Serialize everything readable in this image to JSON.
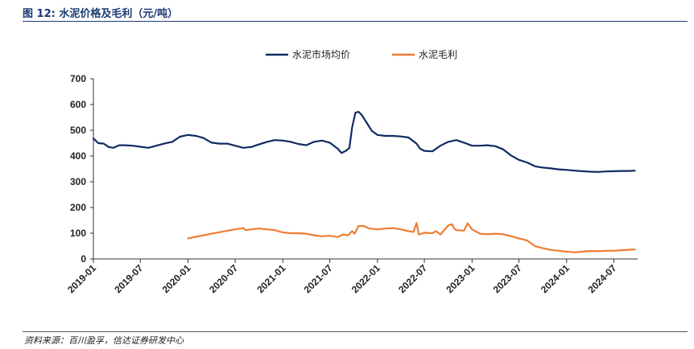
{
  "header": {
    "title": "图 12:  水泥价格及毛利（元/吨）"
  },
  "footer": {
    "source": "资料来源：百川盈孚，信达证券研发中心"
  },
  "colors": {
    "price": "#102a63",
    "margin": "#ed7d31",
    "axis": "#333333",
    "rule": "#1a3a73"
  },
  "chart_data": {
    "type": "line",
    "title": "",
    "xlabel": "",
    "ylabel": "",
    "ylim": [
      0,
      700
    ],
    "yticks": [
      0,
      100,
      200,
      300,
      400,
      500,
      600,
      700
    ],
    "xlim": [
      "2019-01",
      "2024-10"
    ],
    "xticks": [
      "2019-01",
      "2019-07",
      "2020-01",
      "2020-07",
      "2021-01",
      "2021-07",
      "2022-01",
      "2022-07",
      "2023-01",
      "2023-07",
      "2024-01",
      "2024-07"
    ],
    "grid": false,
    "legend": "top-center",
    "series": [
      {
        "name": "水泥市场均价",
        "color": "#102a63",
        "points": [
          [
            "2019-01-01",
            468
          ],
          [
            "2019-01-20",
            450
          ],
          [
            "2019-02-10",
            448
          ],
          [
            "2019-03-01",
            435
          ],
          [
            "2019-03-20",
            432
          ],
          [
            "2019-04-10",
            442
          ],
          [
            "2019-05-01",
            442
          ],
          [
            "2019-06-01",
            440
          ],
          [
            "2019-07-01",
            436
          ],
          [
            "2019-08-01",
            432
          ],
          [
            "2019-09-01",
            440
          ],
          [
            "2019-10-01",
            448
          ],
          [
            "2019-11-01",
            455
          ],
          [
            "2019-12-01",
            475
          ],
          [
            "2020-01-01",
            482
          ],
          [
            "2020-02-01",
            478
          ],
          [
            "2020-03-01",
            470
          ],
          [
            "2020-04-01",
            452
          ],
          [
            "2020-05-01",
            448
          ],
          [
            "2020-06-01",
            448
          ],
          [
            "2020-07-01",
            440
          ],
          [
            "2020-08-01",
            432
          ],
          [
            "2020-09-01",
            435
          ],
          [
            "2020-10-01",
            445
          ],
          [
            "2020-11-01",
            455
          ],
          [
            "2020-12-01",
            462
          ],
          [
            "2021-01-01",
            460
          ],
          [
            "2021-02-01",
            455
          ],
          [
            "2021-03-01",
            447
          ],
          [
            "2021-04-01",
            442
          ],
          [
            "2021-05-01",
            455
          ],
          [
            "2021-06-01",
            460
          ],
          [
            "2021-07-01",
            452
          ],
          [
            "2021-08-01",
            428
          ],
          [
            "2021-08-15",
            412
          ],
          [
            "2021-09-01",
            420
          ],
          [
            "2021-09-15",
            432
          ],
          [
            "2021-09-25",
            510
          ],
          [
            "2021-10-08",
            568
          ],
          [
            "2021-10-20",
            572
          ],
          [
            "2021-11-01",
            560
          ],
          [
            "2021-11-20",
            530
          ],
          [
            "2021-12-10",
            498
          ],
          [
            "2022-01-01",
            482
          ],
          [
            "2022-02-01",
            478
          ],
          [
            "2022-03-01",
            478
          ],
          [
            "2022-04-01",
            476
          ],
          [
            "2022-05-01",
            472
          ],
          [
            "2022-06-01",
            448
          ],
          [
            "2022-06-15",
            428
          ],
          [
            "2022-07-01",
            420
          ],
          [
            "2022-08-01",
            418
          ],
          [
            "2022-09-01",
            440
          ],
          [
            "2022-10-01",
            455
          ],
          [
            "2022-11-01",
            462
          ],
          [
            "2022-12-01",
            452
          ],
          [
            "2023-01-01",
            440
          ],
          [
            "2023-02-01",
            440
          ],
          [
            "2023-03-01",
            442
          ],
          [
            "2023-04-01",
            438
          ],
          [
            "2023-05-01",
            426
          ],
          [
            "2023-06-01",
            402
          ],
          [
            "2023-07-01",
            385
          ],
          [
            "2023-08-01",
            375
          ],
          [
            "2023-09-01",
            360
          ],
          [
            "2023-10-01",
            355
          ],
          [
            "2023-11-01",
            352
          ],
          [
            "2023-12-01",
            348
          ],
          [
            "2024-01-01",
            346
          ],
          [
            "2024-02-01",
            343
          ],
          [
            "2024-03-01",
            341
          ],
          [
            "2024-04-01",
            339
          ],
          [
            "2024-05-01",
            338
          ],
          [
            "2024-06-01",
            340
          ],
          [
            "2024-07-01",
            341
          ],
          [
            "2024-08-01",
            342
          ],
          [
            "2024-09-01",
            342
          ],
          [
            "2024-09-20",
            343
          ]
        ]
      },
      {
        "name": "水泥毛利",
        "color": "#ed7d31",
        "points": [
          [
            "2020-01-01",
            80
          ],
          [
            "2020-04-01",
            98
          ],
          [
            "2020-07-01",
            115
          ],
          [
            "2020-08-01",
            120
          ],
          [
            "2020-08-10",
            112
          ],
          [
            "2020-09-01",
            115
          ],
          [
            "2020-10-01",
            118
          ],
          [
            "2020-11-01",
            115
          ],
          [
            "2020-12-01",
            112
          ],
          [
            "2021-01-01",
            103
          ],
          [
            "2021-02-01",
            100
          ],
          [
            "2021-03-01",
            100
          ],
          [
            "2021-04-01",
            98
          ],
          [
            "2021-05-01",
            92
          ],
          [
            "2021-06-01",
            88
          ],
          [
            "2021-07-01",
            90
          ],
          [
            "2021-08-01",
            85
          ],
          [
            "2021-08-20",
            95
          ],
          [
            "2021-09-10",
            92
          ],
          [
            "2021-09-25",
            108
          ],
          [
            "2021-10-05",
            98
          ],
          [
            "2021-10-20",
            128
          ],
          [
            "2021-11-10",
            128
          ],
          [
            "2021-12-01",
            118
          ],
          [
            "2022-01-01",
            115
          ],
          [
            "2022-02-01",
            118
          ],
          [
            "2022-03-01",
            120
          ],
          [
            "2022-04-01",
            115
          ],
          [
            "2022-05-01",
            108
          ],
          [
            "2022-05-20",
            105
          ],
          [
            "2022-06-01",
            140
          ],
          [
            "2022-06-10",
            95
          ],
          [
            "2022-07-01",
            102
          ],
          [
            "2022-08-01",
            100
          ],
          [
            "2022-08-15",
            108
          ],
          [
            "2022-09-01",
            95
          ],
          [
            "2022-10-01",
            130
          ],
          [
            "2022-10-15",
            135
          ],
          [
            "2022-10-25",
            118
          ],
          [
            "2022-11-01",
            112
          ],
          [
            "2022-12-01",
            110
          ],
          [
            "2022-12-15",
            138
          ],
          [
            "2023-01-01",
            115
          ],
          [
            "2023-02-01",
            98
          ],
          [
            "2023-03-01",
            96
          ],
          [
            "2023-04-01",
            98
          ],
          [
            "2023-05-01",
            96
          ],
          [
            "2023-06-01",
            88
          ],
          [
            "2023-07-01",
            80
          ],
          [
            "2023-08-01",
            72
          ],
          [
            "2023-09-01",
            50
          ],
          [
            "2023-10-01",
            42
          ],
          [
            "2023-11-01",
            35
          ],
          [
            "2023-12-01",
            32
          ],
          [
            "2024-01-01",
            28
          ],
          [
            "2024-02-01",
            26
          ],
          [
            "2024-03-01",
            28
          ],
          [
            "2024-04-01",
            31
          ],
          [
            "2024-05-01",
            30
          ],
          [
            "2024-06-01",
            32
          ],
          [
            "2024-07-01",
            32
          ],
          [
            "2024-08-01",
            34
          ],
          [
            "2024-09-01",
            36
          ],
          [
            "2024-09-20",
            37
          ]
        ]
      }
    ]
  }
}
